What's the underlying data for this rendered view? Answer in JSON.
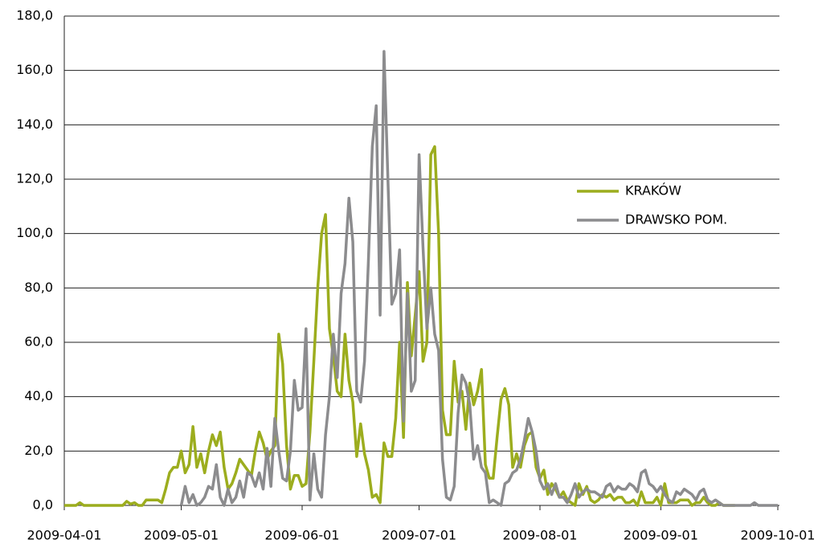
{
  "chart_data": {
    "type": "line",
    "x": [
      "2009-04-01",
      "2009-04-02",
      "2009-04-03",
      "2009-04-04",
      "2009-04-05",
      "2009-04-06",
      "2009-04-07",
      "2009-04-08",
      "2009-04-09",
      "2009-04-10",
      "2009-04-11",
      "2009-04-12",
      "2009-04-13",
      "2009-04-14",
      "2009-04-15",
      "2009-04-16",
      "2009-04-17",
      "2009-04-18",
      "2009-04-19",
      "2009-04-20",
      "2009-04-21",
      "2009-04-22",
      "2009-04-23",
      "2009-04-24",
      "2009-04-25",
      "2009-04-26",
      "2009-04-27",
      "2009-04-28",
      "2009-04-29",
      "2009-04-30",
      "2009-05-01",
      "2009-05-02",
      "2009-05-03",
      "2009-05-04",
      "2009-05-05",
      "2009-05-06",
      "2009-05-07",
      "2009-05-08",
      "2009-05-09",
      "2009-05-10",
      "2009-05-11",
      "2009-05-12",
      "2009-05-13",
      "2009-05-14",
      "2009-05-15",
      "2009-05-16",
      "2009-05-17",
      "2009-05-18",
      "2009-05-19",
      "2009-05-20",
      "2009-05-21",
      "2009-05-22",
      "2009-05-23",
      "2009-05-24",
      "2009-05-25",
      "2009-05-26",
      "2009-05-27",
      "2009-05-28",
      "2009-05-29",
      "2009-05-30",
      "2009-05-31",
      "2009-06-01",
      "2009-06-02",
      "2009-06-03",
      "2009-06-04",
      "2009-06-05",
      "2009-06-06",
      "2009-06-07",
      "2009-06-08",
      "2009-06-09",
      "2009-06-10",
      "2009-06-11",
      "2009-06-12",
      "2009-06-13",
      "2009-06-14",
      "2009-06-15",
      "2009-06-16",
      "2009-06-17",
      "2009-06-18",
      "2009-06-19",
      "2009-06-20",
      "2009-06-21",
      "2009-06-22",
      "2009-06-23",
      "2009-06-24",
      "2009-06-25",
      "2009-06-26",
      "2009-06-27",
      "2009-06-28",
      "2009-06-29",
      "2009-06-30",
      "2009-07-01",
      "2009-07-02",
      "2009-07-03",
      "2009-07-04",
      "2009-07-05",
      "2009-07-06",
      "2009-07-07",
      "2009-07-08",
      "2009-07-09",
      "2009-07-10",
      "2009-07-11",
      "2009-07-12",
      "2009-07-13",
      "2009-07-14",
      "2009-07-15",
      "2009-07-16",
      "2009-07-17",
      "2009-07-18",
      "2009-07-19",
      "2009-07-20",
      "2009-07-21",
      "2009-07-22",
      "2009-07-23",
      "2009-07-24",
      "2009-07-25",
      "2009-07-26",
      "2009-07-27",
      "2009-07-28",
      "2009-07-29",
      "2009-07-30",
      "2009-07-31",
      "2009-08-01",
      "2009-08-02",
      "2009-08-03",
      "2009-08-04",
      "2009-08-05",
      "2009-08-06",
      "2009-08-07",
      "2009-08-08",
      "2009-08-09",
      "2009-08-10",
      "2009-08-11",
      "2009-08-12",
      "2009-08-13",
      "2009-08-14",
      "2009-08-15",
      "2009-08-16",
      "2009-08-17",
      "2009-08-18",
      "2009-08-19",
      "2009-08-20",
      "2009-08-21",
      "2009-08-22",
      "2009-08-23",
      "2009-08-24",
      "2009-08-25",
      "2009-08-26",
      "2009-08-27",
      "2009-08-28",
      "2009-08-29",
      "2009-08-30",
      "2009-08-31",
      "2009-09-01",
      "2009-09-02",
      "2009-09-03",
      "2009-09-04",
      "2009-09-05",
      "2009-09-06",
      "2009-09-07",
      "2009-09-08",
      "2009-09-09",
      "2009-09-10",
      "2009-09-11",
      "2009-09-12",
      "2009-09-13",
      "2009-09-14",
      "2009-09-15",
      "2009-09-16",
      "2009-09-17",
      "2009-09-18",
      "2009-09-19",
      "2009-09-20",
      "2009-09-21",
      "2009-09-22",
      "2009-09-23",
      "2009-09-24",
      "2009-09-25",
      "2009-09-26",
      "2009-09-27",
      "2009-09-28",
      "2009-09-29",
      "2009-09-30",
      "2009-10-01"
    ],
    "series": [
      {
        "name": "KRAKÓW",
        "color": "#9cad1e",
        "values": [
          0,
          0,
          0,
          0,
          1,
          0,
          0,
          0,
          0,
          0,
          0,
          0,
          0,
          0,
          0,
          0,
          1.5,
          0.5,
          1,
          0,
          0,
          2,
          2,
          2,
          2,
          1,
          6,
          12,
          14,
          14,
          20,
          12,
          15,
          29,
          14,
          19,
          12,
          20,
          26,
          22,
          27,
          14,
          6,
          8,
          12,
          17,
          15,
          13,
          11,
          20,
          27,
          23,
          17,
          20,
          22,
          63,
          52,
          22,
          6,
          11,
          11,
          7,
          8,
          27,
          53,
          80,
          100,
          107,
          65,
          55,
          42,
          40,
          63,
          46,
          38,
          18,
          30,
          19,
          13,
          3,
          4,
          1,
          23,
          18,
          18,
          32,
          60,
          25,
          82,
          55,
          70,
          86,
          53,
          60,
          129,
          132,
          100,
          35,
          26,
          26,
          53,
          38,
          42,
          28,
          45,
          37,
          42,
          50,
          15,
          10,
          10,
          25,
          39,
          43,
          37,
          14,
          19,
          14,
          22,
          26,
          27,
          14,
          10,
          13,
          4,
          8,
          6,
          3,
          5,
          2,
          1,
          0,
          8,
          4,
          7,
          2,
          1,
          2,
          4,
          3,
          4,
          2,
          3,
          3,
          1,
          1,
          2,
          0,
          5,
          1,
          1,
          1,
          3,
          0,
          8,
          1,
          1,
          1,
          2,
          2,
          2,
          0,
          1,
          1,
          3,
          1,
          0,
          0,
          1,
          0,
          0,
          0,
          0,
          null,
          null,
          null,
          null,
          null,
          null,
          null,
          null,
          null,
          null,
          null
        ]
      },
      {
        "name": "DRAWSKO POM.",
        "color": "#8c8c8e",
        "values": [
          null,
          null,
          null,
          null,
          null,
          null,
          null,
          null,
          null,
          null,
          null,
          null,
          null,
          null,
          null,
          null,
          null,
          null,
          null,
          null,
          null,
          null,
          null,
          null,
          null,
          null,
          null,
          null,
          null,
          null,
          0,
          7,
          1,
          4,
          0,
          1,
          3,
          7,
          6,
          15,
          3,
          0,
          6,
          1,
          3,
          9,
          3,
          12,
          11,
          7,
          12,
          6,
          21,
          7,
          32,
          20,
          10,
          9,
          20,
          46,
          35,
          36,
          65,
          2,
          19,
          6,
          3,
          26,
          40,
          63,
          47,
          78,
          89,
          113,
          97,
          42,
          38,
          53,
          90,
          132,
          147,
          70,
          167,
          120,
          74,
          78,
          94,
          31,
          78,
          42,
          46,
          129,
          95,
          65,
          80,
          63,
          57,
          17,
          3,
          2,
          7,
          34,
          48,
          45,
          37,
          17,
          22,
          14,
          12,
          1,
          2,
          1,
          0,
          8,
          9,
          12,
          13,
          17,
          24,
          32,
          27,
          20,
          9,
          6,
          8,
          4,
          8,
          3,
          3,
          1,
          4,
          8,
          3,
          5,
          6,
          5,
          5,
          4,
          3,
          7,
          8,
          5,
          7,
          6,
          6,
          8,
          7,
          5,
          12,
          13,
          8,
          7,
          5,
          7,
          4,
          2,
          1,
          5,
          4,
          6,
          5,
          4,
          2,
          5,
          6,
          2,
          1,
          2,
          1,
          0,
          0,
          0,
          0,
          0,
          0,
          0,
          0,
          1,
          0,
          0,
          0,
          0,
          0,
          0
        ]
      }
    ],
    "xlim": [
      "2009-04-01",
      "2009-10-01"
    ],
    "xticks": [
      "2009-04-01",
      "2009-05-01",
      "2009-06-01",
      "2009-07-01",
      "2009-08-01",
      "2009-09-01",
      "2009-10-01"
    ],
    "ylim": [
      0,
      180
    ],
    "yticks": [
      {
        "value": 0,
        "label": "0,0"
      },
      {
        "value": 20,
        "label": "20,0"
      },
      {
        "value": 40,
        "label": "40,0"
      },
      {
        "value": 60,
        "label": "60,0"
      },
      {
        "value": 80,
        "label": "80,0"
      },
      {
        "value": 100,
        "label": "100,0"
      },
      {
        "value": 120,
        "label": "120,0"
      },
      {
        "value": 140,
        "label": "140,0"
      },
      {
        "value": 160,
        "label": "160,0"
      },
      {
        "value": 180,
        "label": "180,0"
      }
    ],
    "grid": true,
    "legend": "right"
  }
}
